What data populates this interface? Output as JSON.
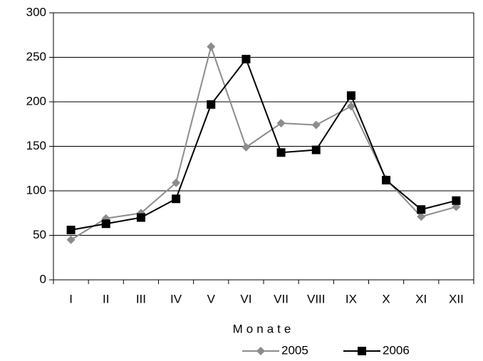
{
  "chart_data": {
    "type": "line",
    "categories": [
      "I",
      "II",
      "III",
      "IV",
      "V",
      "VI",
      "VII",
      "VIII",
      "IX",
      "X",
      "XI",
      "XII"
    ],
    "x_label": "Monate",
    "series": [
      {
        "name": "2005",
        "color": "#8c8c8c",
        "marker": "diamond",
        "values": [
          45,
          69,
          75,
          109,
          262,
          149,
          176,
          174,
          195,
          113,
          71,
          82
        ]
      },
      {
        "name": "2006",
        "color": "#000000",
        "marker": "square",
        "values": [
          56,
          63,
          70,
          91,
          197,
          248,
          143,
          146,
          207,
          112,
          79,
          89
        ]
      }
    ],
    "ylim": [
      0,
      300
    ],
    "yticks": [
      0,
      50,
      100,
      150,
      200,
      250,
      300
    ],
    "grid": true,
    "legend": "bottom"
  }
}
